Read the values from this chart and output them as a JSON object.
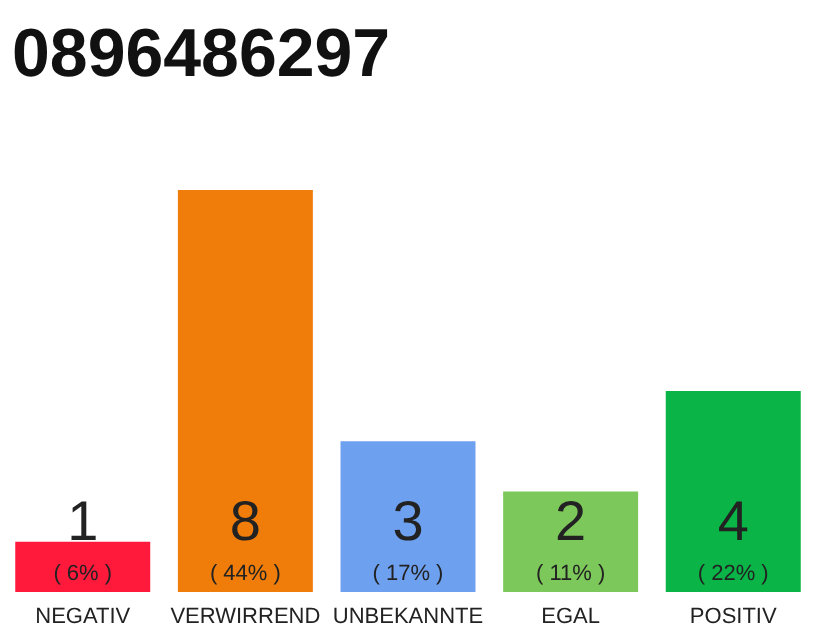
{
  "chart_data": {
    "type": "bar",
    "title": "0896486297",
    "categories": [
      "NEGATIV",
      "VERWIRREND",
      "UNBEKANNTE",
      "EGAL",
      "POSITIV"
    ],
    "values": [
      1,
      8,
      3,
      2,
      4
    ],
    "colors": [
      "#ff1a3c",
      "#f07d0a",
      "#6ea0f0",
      "#7dc85a",
      "#0ab446"
    ],
    "ylim": [
      0,
      8
    ],
    "data_labels": true,
    "annotations": [
      "( 6% )",
      "( 44% )",
      "( 17% )",
      "( 11% )",
      "( 22% )"
    ]
  }
}
